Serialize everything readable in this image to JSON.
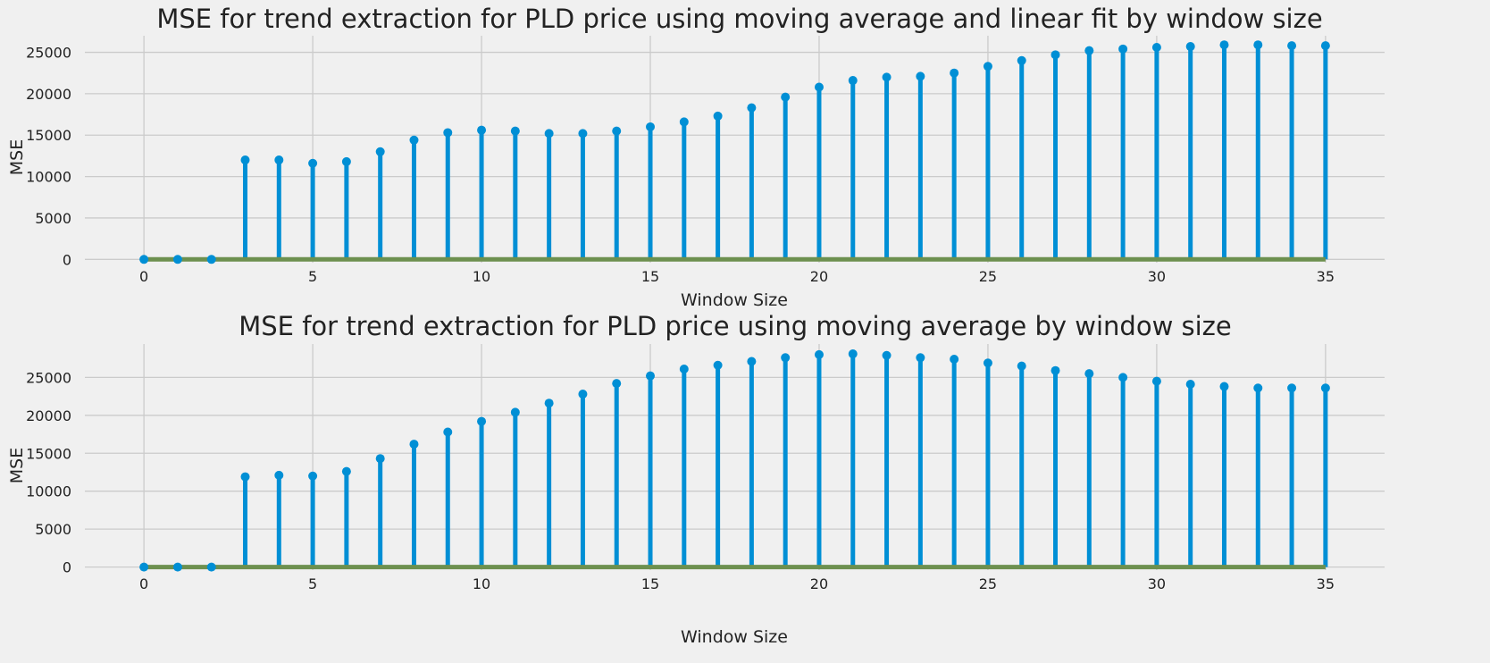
{
  "colors": {
    "background": "#f0f0f0",
    "grid": "#cbcbcb",
    "stem": "#008fd5",
    "baseline": "#6d904f"
  },
  "chart_data": [
    {
      "type": "stem",
      "title": "MSE for trend extraction for PLD price using moving average and linear fit by window size",
      "xlabel": "Window Size",
      "ylabel": "MSE",
      "xlim": [
        -1.75,
        36.75
      ],
      "ylim": [
        -400,
        27000
      ],
      "xticks": [
        0,
        5,
        10,
        15,
        20,
        25,
        30,
        35
      ],
      "yticks": [
        0,
        5000,
        10000,
        15000,
        20000,
        25000
      ],
      "grid": true,
      "x": [
        0,
        1,
        2,
        3,
        4,
        5,
        6,
        7,
        8,
        9,
        10,
        11,
        12,
        13,
        14,
        15,
        16,
        17,
        18,
        19,
        20,
        21,
        22,
        23,
        24,
        25,
        26,
        27,
        28,
        29,
        30,
        31,
        32,
        33,
        34,
        35
      ],
      "values": [
        0,
        0,
        0,
        12000,
        12000,
        11600,
        11800,
        13000,
        14400,
        15300,
        15600,
        15500,
        15200,
        15200,
        15500,
        16000,
        16600,
        17300,
        18300,
        19600,
        20800,
        21600,
        22000,
        22100,
        22500,
        23300,
        24000,
        24700,
        25200,
        25400,
        25600,
        25700,
        25900,
        25900,
        25800,
        25800
      ]
    },
    {
      "type": "stem",
      "title": "MSE for trend extraction for PLD price using moving average by window size",
      "xlabel": "Window Size",
      "ylabel": "MSE",
      "xlim": [
        -1.75,
        36.75
      ],
      "ylim": [
        -400,
        29400
      ],
      "xticks": [
        0,
        5,
        10,
        15,
        20,
        25,
        30,
        35
      ],
      "yticks": [
        0,
        5000,
        10000,
        15000,
        20000,
        25000
      ],
      "grid": true,
      "x": [
        0,
        1,
        2,
        3,
        4,
        5,
        6,
        7,
        8,
        9,
        10,
        11,
        12,
        13,
        14,
        15,
        16,
        17,
        18,
        19,
        20,
        21,
        22,
        23,
        24,
        25,
        26,
        27,
        28,
        29,
        30,
        31,
        32,
        33,
        34,
        35
      ],
      "values": [
        0,
        0,
        0,
        11900,
        12100,
        12000,
        12600,
        14300,
        16200,
        17800,
        19200,
        20400,
        21600,
        22800,
        24200,
        25200,
        26100,
        26600,
        27100,
        27600,
        28000,
        28100,
        27900,
        27600,
        27400,
        26900,
        26500,
        25900,
        25500,
        25000,
        24500,
        24100,
        23800,
        23600,
        23600,
        23600
      ]
    }
  ]
}
